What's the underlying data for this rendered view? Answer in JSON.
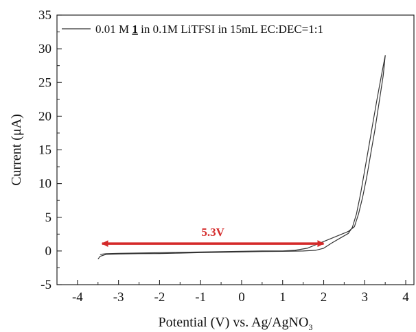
{
  "chart_data": {
    "type": "line",
    "xlabel": "Potential (V) vs. Ag/AgNO",
    "xlabel_subscript": "3",
    "ylabel": "Current (μA)",
    "xlim": [
      -4.5,
      4.2
    ],
    "ylim": [
      -5,
      35
    ],
    "x_ticks": [
      -4,
      -3,
      -2,
      -1,
      0,
      1,
      2,
      3,
      4
    ],
    "y_ticks": [
      -5,
      0,
      5,
      10,
      15,
      20,
      25,
      30,
      35
    ],
    "legend": {
      "position": "top",
      "parts": [
        "0.01 M ",
        "1",
        " in 0.1M LiTFSI in 15mL EC:DEC=1:1"
      ]
    },
    "series": [
      {
        "color": "#333333",
        "points": [
          [
            -3.5,
            -1.2
          ],
          [
            -3.45,
            -0.8
          ],
          [
            -3.3,
            -0.5
          ],
          [
            -3.0,
            -0.45
          ],
          [
            -2.5,
            -0.4
          ],
          [
            -2.0,
            -0.38
          ],
          [
            -1.5,
            -0.32
          ],
          [
            -1.0,
            -0.25
          ],
          [
            -0.5,
            -0.2
          ],
          [
            0.0,
            -0.15
          ],
          [
            0.5,
            -0.08
          ],
          [
            1.0,
            -0.05
          ],
          [
            1.5,
            0.0
          ],
          [
            1.8,
            0.1
          ],
          [
            2.0,
            0.4
          ],
          [
            2.2,
            1.2
          ],
          [
            2.4,
            1.9
          ],
          [
            2.6,
            2.6
          ],
          [
            2.7,
            3.5
          ],
          [
            2.8,
            5.5
          ],
          [
            2.9,
            8.5
          ],
          [
            3.0,
            12.0
          ],
          [
            3.1,
            15.5
          ],
          [
            3.2,
            19.0
          ],
          [
            3.3,
            22.5
          ],
          [
            3.4,
            25.8
          ],
          [
            3.5,
            29.0
          ],
          [
            3.45,
            26.0
          ],
          [
            3.35,
            22.0
          ],
          [
            3.25,
            18.0
          ],
          [
            3.15,
            14.5
          ],
          [
            3.05,
            11.0
          ],
          [
            2.95,
            8.0
          ],
          [
            2.85,
            5.5
          ],
          [
            2.75,
            3.6
          ],
          [
            2.6,
            2.9
          ],
          [
            2.4,
            2.4
          ],
          [
            2.2,
            1.9
          ],
          [
            2.0,
            1.4
          ],
          [
            1.8,
            0.9
          ],
          [
            1.6,
            0.4
          ],
          [
            1.3,
            0.1
          ],
          [
            1.0,
            0.0
          ],
          [
            0.5,
            0.0
          ],
          [
            0.0,
            -0.05
          ],
          [
            -0.5,
            -0.1
          ],
          [
            -1.0,
            -0.15
          ],
          [
            -1.5,
            -0.2
          ],
          [
            -2.0,
            -0.25
          ],
          [
            -2.5,
            -0.3
          ],
          [
            -3.0,
            -0.35
          ],
          [
            -3.3,
            -0.4
          ],
          [
            -3.45,
            -0.5
          ]
        ]
      }
    ],
    "annotations": [
      {
        "type": "double-arrow",
        "x_from": -3.4,
        "x_to": 2.0,
        "y": 1.1,
        "label": "5.3V",
        "color": "#d42a2a"
      }
    ]
  }
}
